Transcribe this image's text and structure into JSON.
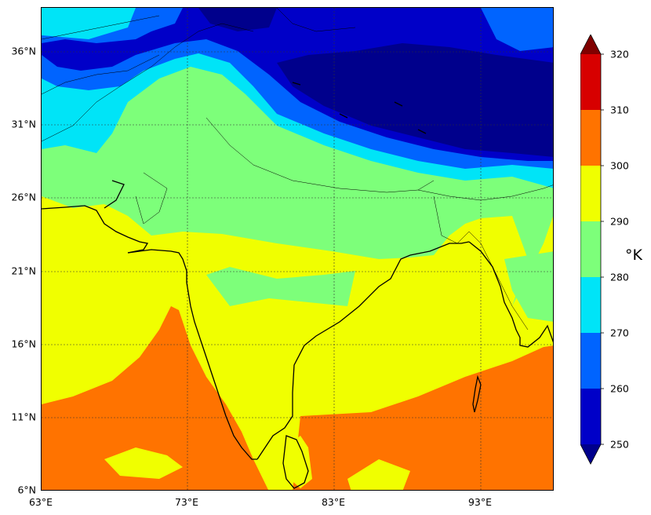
{
  "map": {
    "lon_range": [
      63,
      98
    ],
    "lat_range": [
      6,
      39
    ],
    "lat_ticks": [
      "36°N",
      "31°N",
      "26°N",
      "21°N",
      "16°N",
      "11°N",
      "6°N"
    ],
    "lon_ticks": [
      "63°E",
      "73°E",
      "83°E",
      "93°E"
    ],
    "colors": {
      "dark_navy": "#00008c",
      "navy": "#0000c8",
      "blue": "#0064ff",
      "cyan": "#00e4f7",
      "green": "#7dff7a",
      "yellow": "#f0ff00",
      "orange": "#ff7300",
      "coast": "#000000"
    }
  },
  "colorbar": {
    "unit": "°K",
    "ticks": [
      "320",
      "310",
      "300",
      "290",
      "280",
      "270",
      "260",
      "250"
    ],
    "levels": [
      250,
      260,
      270,
      280,
      290,
      300,
      310,
      320
    ],
    "colors": [
      "#0000c8",
      "#0064ff",
      "#00e4f7",
      "#7dff7a",
      "#f0ff00",
      "#ff7300",
      "#d70000"
    ],
    "under_color": "#00008c",
    "over_color": "#800000"
  }
}
